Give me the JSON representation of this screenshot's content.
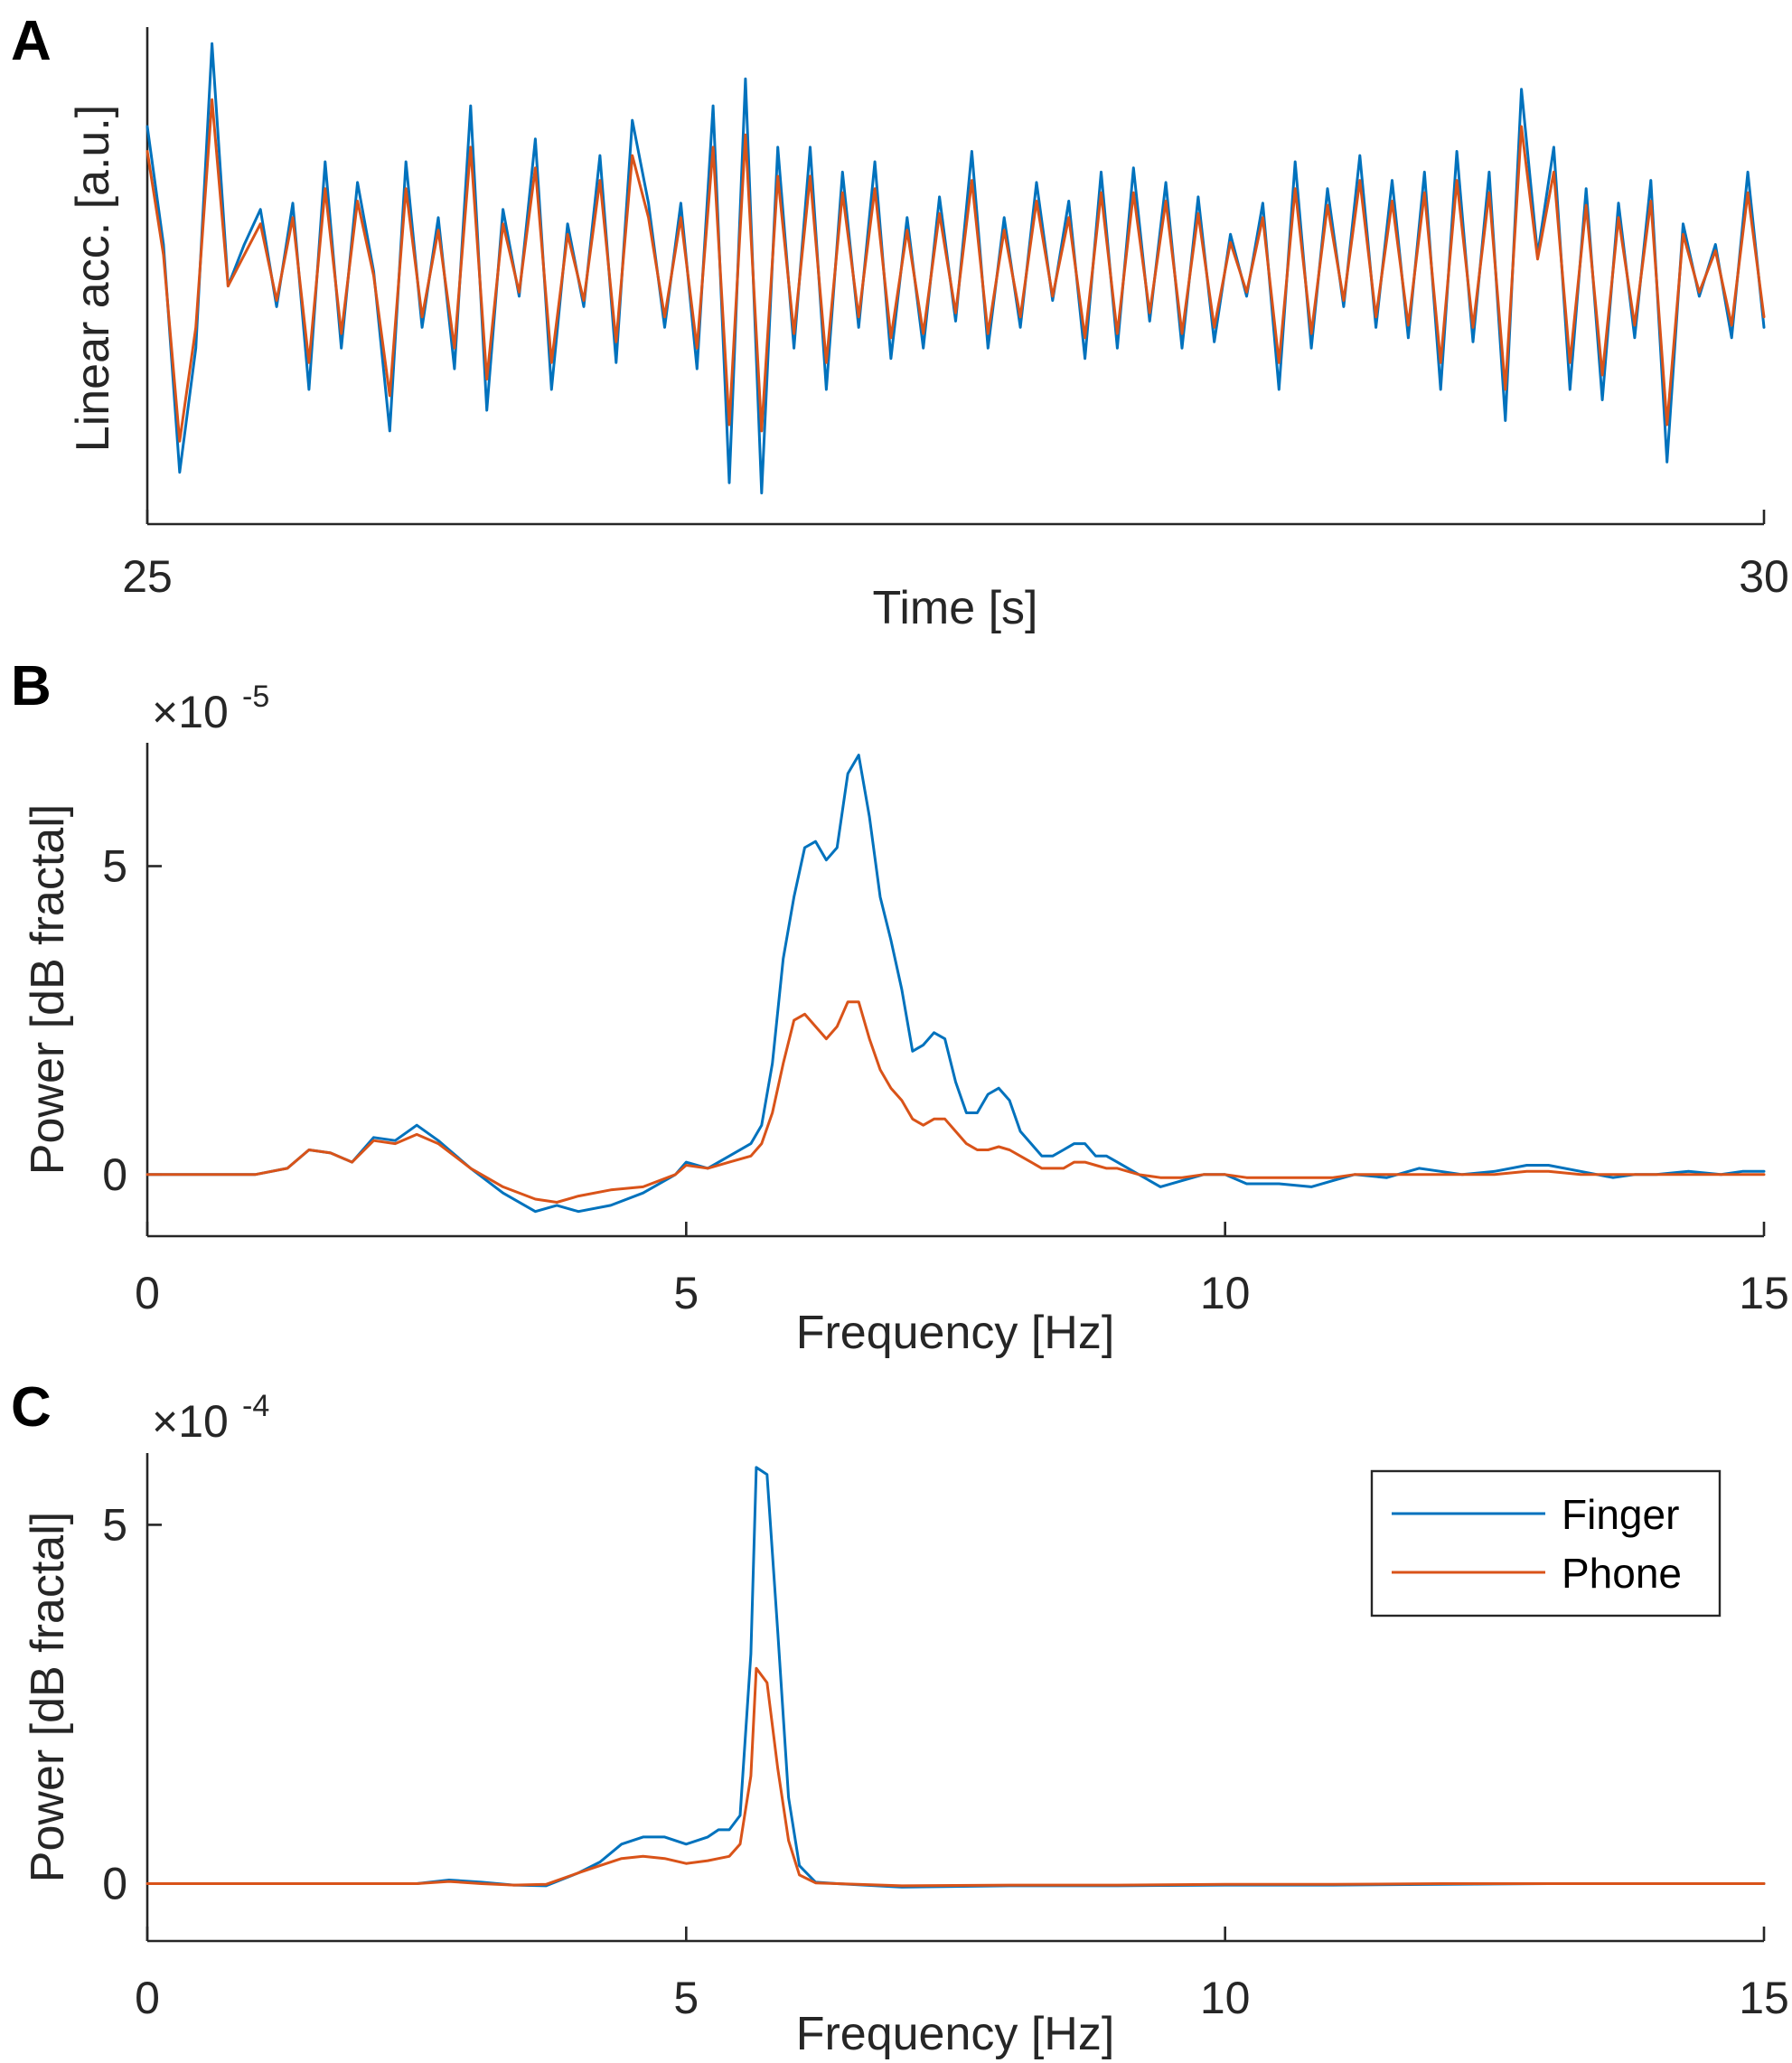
{
  "chart_data": [
    {
      "panel": "A",
      "type": "line",
      "xlabel": "Time [s]",
      "ylabel": "Linear acc. [a.u.]",
      "xlim": [
        25,
        30
      ],
      "ylim": [
        -1.2,
        1.2
      ],
      "xticks": [
        25,
        30
      ],
      "yticks": [],
      "series": [
        {
          "name": "Finger",
          "color": "#0072BD",
          "x": [
            25.0,
            25.05,
            25.1,
            25.15,
            25.2,
            25.25,
            25.3,
            25.35,
            25.4,
            25.45,
            25.5,
            25.55,
            25.6,
            25.65,
            25.7,
            25.75,
            25.8,
            25.85,
            25.9,
            25.95,
            26.0,
            26.05,
            26.1,
            26.15,
            26.2,
            26.25,
            26.3,
            26.35,
            26.4,
            26.45,
            26.5,
            26.55,
            26.6,
            26.65,
            26.7,
            26.75,
            26.8,
            26.85,
            26.9,
            26.95,
            27.0,
            27.05,
            27.1,
            27.15,
            27.2,
            27.25,
            27.3,
            27.35,
            27.4,
            27.45,
            27.5,
            27.55,
            27.6,
            27.65,
            27.7,
            27.75,
            27.8,
            27.85,
            27.9,
            27.95,
            28.0,
            28.05,
            28.1,
            28.15,
            28.2,
            28.25,
            28.3,
            28.35,
            28.4,
            28.45,
            28.5,
            28.55,
            28.6,
            28.65,
            28.7,
            28.75,
            28.8,
            28.85,
            28.9,
            28.95,
            29.0,
            29.05,
            29.1,
            29.15,
            29.2,
            29.25,
            29.3,
            29.35,
            29.4,
            29.45,
            29.5,
            29.55,
            29.6,
            29.65,
            29.7,
            29.75,
            29.8,
            29.85,
            29.9,
            29.95,
            30.0
          ],
          "y": [
            0.72,
            0.15,
            -0.95,
            -0.35,
            1.12,
            -0.05,
            0.15,
            0.32,
            -0.15,
            0.35,
            -0.55,
            0.55,
            -0.35,
            0.45,
            0.02,
            -0.75,
            0.55,
            -0.25,
            0.28,
            -0.45,
            0.82,
            -0.65,
            0.32,
            -0.1,
            0.66,
            -0.55,
            0.25,
            -0.15,
            0.58,
            -0.42,
            0.75,
            0.35,
            -0.25,
            0.35,
            -0.45,
            0.82,
            -1.0,
            0.95,
            -1.05,
            0.62,
            -0.35,
            0.62,
            -0.55,
            0.5,
            -0.25,
            0.55,
            -0.4,
            0.28,
            -0.35,
            0.38,
            -0.22,
            0.6,
            -0.35,
            0.28,
            -0.25,
            0.45,
            -0.12,
            0.36,
            -0.4,
            0.5,
            -0.35,
            0.52,
            -0.22,
            0.45,
            -0.35,
            0.38,
            -0.32,
            0.2,
            -0.1,
            0.35,
            -0.55,
            0.55,
            -0.35,
            0.42,
            -0.15,
            0.58,
            -0.25,
            0.46,
            -0.3,
            0.5,
            -0.55,
            0.6,
            -0.32,
            0.5,
            -0.7,
            0.9,
            0.1,
            0.62,
            -0.55,
            0.42,
            -0.6,
            0.35,
            -0.3,
            0.46,
            -0.9,
            0.25,
            -0.1,
            0.15,
            -0.3,
            0.5,
            -0.25
          ]
        },
        {
          "name": "Phone",
          "color": "#D95319",
          "x": [
            25.0,
            25.05,
            25.1,
            25.15,
            25.2,
            25.25,
            25.3,
            25.35,
            25.4,
            25.45,
            25.5,
            25.55,
            25.6,
            25.65,
            25.7,
            25.75,
            25.8,
            25.85,
            25.9,
            25.95,
            26.0,
            26.05,
            26.1,
            26.15,
            26.2,
            26.25,
            26.3,
            26.35,
            26.4,
            26.45,
            26.5,
            26.55,
            26.6,
            26.65,
            26.7,
            26.75,
            26.8,
            26.85,
            26.9,
            26.95,
            27.0,
            27.05,
            27.1,
            27.15,
            27.2,
            27.25,
            27.3,
            27.35,
            27.4,
            27.45,
            27.5,
            27.55,
            27.6,
            27.65,
            27.7,
            27.75,
            27.8,
            27.85,
            27.9,
            27.95,
            28.0,
            28.05,
            28.1,
            28.15,
            28.2,
            28.25,
            28.3,
            28.35,
            28.4,
            28.45,
            28.5,
            28.55,
            28.6,
            28.65,
            28.7,
            28.75,
            28.8,
            28.85,
            28.9,
            28.95,
            29.0,
            29.05,
            29.1,
            29.15,
            29.2,
            29.25,
            29.3,
            29.35,
            29.4,
            29.45,
            29.5,
            29.55,
            29.6,
            29.65,
            29.7,
            29.75,
            29.8,
            29.85,
            29.9,
            29.95,
            30.0
          ],
          "y": [
            0.6,
            0.1,
            -0.8,
            -0.25,
            0.85,
            -0.05,
            0.1,
            0.25,
            -0.12,
            0.28,
            -0.42,
            0.42,
            -0.28,
            0.36,
            0.0,
            -0.58,
            0.42,
            -0.2,
            0.22,
            -0.35,
            0.62,
            -0.5,
            0.25,
            -0.08,
            0.52,
            -0.42,
            0.2,
            -0.12,
            0.46,
            -0.32,
            0.58,
            0.28,
            -0.2,
            0.28,
            -0.35,
            0.62,
            -0.72,
            0.68,
            -0.75,
            0.48,
            -0.28,
            0.48,
            -0.42,
            0.4,
            -0.2,
            0.42,
            -0.3,
            0.22,
            -0.28,
            0.3,
            -0.18,
            0.46,
            -0.28,
            0.22,
            -0.2,
            0.36,
            -0.1,
            0.28,
            -0.3,
            0.4,
            -0.28,
            0.4,
            -0.18,
            0.36,
            -0.28,
            0.3,
            -0.25,
            0.16,
            -0.08,
            0.28,
            -0.42,
            0.42,
            -0.28,
            0.34,
            -0.12,
            0.46,
            -0.2,
            0.36,
            -0.24,
            0.4,
            -0.42,
            0.46,
            -0.25,
            0.4,
            -0.55,
            0.72,
            0.08,
            0.5,
            -0.42,
            0.34,
            -0.48,
            0.28,
            -0.24,
            0.36,
            -0.72,
            0.2,
            -0.08,
            0.12,
            -0.24,
            0.4,
            -0.2
          ]
        }
      ]
    },
    {
      "panel": "B",
      "type": "line",
      "xlabel": "Frequency [Hz]",
      "ylabel": "Power [dB fractal]",
      "xlim": [
        0,
        15
      ],
      "ylim": [
        -1.0,
        7.0
      ],
      "xticks": [
        0,
        5,
        10,
        15
      ],
      "yticks": [
        0,
        5
      ],
      "exponent": "-5",
      "series": [
        {
          "name": "Finger",
          "color": "#0072BD",
          "x": [
            0,
            0.5,
            1.0,
            1.3,
            1.5,
            1.7,
            1.9,
            2.1,
            2.3,
            2.5,
            2.7,
            3.0,
            3.3,
            3.6,
            3.8,
            4.0,
            4.3,
            4.6,
            4.9,
            5.0,
            5.2,
            5.4,
            5.6,
            5.7,
            5.8,
            5.9,
            6.0,
            6.1,
            6.2,
            6.3,
            6.4,
            6.5,
            6.6,
            6.7,
            6.8,
            6.9,
            7.0,
            7.1,
            7.2,
            7.3,
            7.4,
            7.5,
            7.6,
            7.7,
            7.8,
            7.9,
            8.0,
            8.1,
            8.2,
            8.3,
            8.4,
            8.5,
            8.6,
            8.7,
            8.8,
            8.9,
            9.0,
            9.2,
            9.4,
            9.6,
            9.8,
            10.0,
            10.2,
            10.5,
            10.8,
            11.0,
            11.2,
            11.5,
            11.8,
            12.0,
            12.2,
            12.5,
            12.8,
            13.0,
            13.3,
            13.6,
            13.8,
            14.0,
            14.3,
            14.6,
            14.8,
            15.0
          ],
          "y": [
            0,
            0,
            0,
            0.1,
            0.4,
            0.35,
            0.2,
            0.6,
            0.55,
            0.8,
            0.55,
            0.1,
            -0.3,
            -0.6,
            -0.5,
            -0.6,
            -0.5,
            -0.3,
            0.0,
            0.2,
            0.1,
            0.3,
            0.5,
            0.8,
            1.8,
            3.5,
            4.5,
            5.3,
            5.4,
            5.1,
            5.3,
            6.5,
            6.8,
            5.8,
            4.5,
            3.8,
            3.0,
            2.0,
            2.1,
            2.3,
            2.2,
            1.5,
            1.0,
            1.0,
            1.3,
            1.4,
            1.2,
            0.7,
            0.5,
            0.3,
            0.3,
            0.4,
            0.5,
            0.5,
            0.3,
            0.3,
            0.2,
            0.0,
            -0.2,
            -0.1,
            0.0,
            0.0,
            -0.15,
            -0.15,
            -0.2,
            -0.1,
            0.0,
            -0.05,
            0.1,
            0.05,
            0.0,
            0.05,
            0.15,
            0.15,
            0.05,
            -0.05,
            0.0,
            0.0,
            0.05,
            0.0,
            0.05,
            0.05
          ]
        },
        {
          "name": "Phone",
          "color": "#D95319",
          "x": [
            0,
            0.5,
            1.0,
            1.3,
            1.5,
            1.7,
            1.9,
            2.1,
            2.3,
            2.5,
            2.7,
            3.0,
            3.3,
            3.6,
            3.8,
            4.0,
            4.3,
            4.6,
            4.9,
            5.0,
            5.2,
            5.4,
            5.6,
            5.7,
            5.8,
            5.9,
            6.0,
            6.1,
            6.2,
            6.3,
            6.4,
            6.5,
            6.6,
            6.7,
            6.8,
            6.9,
            7.0,
            7.1,
            7.2,
            7.3,
            7.4,
            7.5,
            7.6,
            7.7,
            7.8,
            7.9,
            8.0,
            8.1,
            8.2,
            8.3,
            8.4,
            8.5,
            8.6,
            8.7,
            8.8,
            8.9,
            9.0,
            9.2,
            9.4,
            9.6,
            9.8,
            10.0,
            10.2,
            10.5,
            10.8,
            11.0,
            11.2,
            11.5,
            11.8,
            12.0,
            12.2,
            12.5,
            12.8,
            13.0,
            13.3,
            13.6,
            13.8,
            14.0,
            14.3,
            14.6,
            14.8,
            15.0
          ],
          "y": [
            0,
            0,
            0,
            0.1,
            0.4,
            0.35,
            0.2,
            0.55,
            0.5,
            0.65,
            0.5,
            0.1,
            -0.2,
            -0.4,
            -0.45,
            -0.35,
            -0.25,
            -0.2,
            0.0,
            0.15,
            0.1,
            0.2,
            0.3,
            0.5,
            1.0,
            1.8,
            2.5,
            2.6,
            2.4,
            2.2,
            2.4,
            2.8,
            2.8,
            2.2,
            1.7,
            1.4,
            1.2,
            0.9,
            0.8,
            0.9,
            0.9,
            0.7,
            0.5,
            0.4,
            0.4,
            0.45,
            0.4,
            0.3,
            0.2,
            0.1,
            0.1,
            0.1,
            0.2,
            0.2,
            0.15,
            0.1,
            0.1,
            0.0,
            -0.05,
            -0.05,
            0.0,
            0.0,
            -0.05,
            -0.05,
            -0.05,
            -0.05,
            0.0,
            0.0,
            0.0,
            0.0,
            0.0,
            0.0,
            0.05,
            0.05,
            0.0,
            0.0,
            0.0,
            0.0,
            0.0,
            0.0,
            0.0,
            0.0
          ]
        }
      ]
    },
    {
      "panel": "C",
      "type": "line",
      "xlabel": "Frequency [Hz]",
      "ylabel": "Power [dB fractal]",
      "xlim": [
        0,
        15
      ],
      "ylim": [
        -0.8,
        6.0
      ],
      "xticks": [
        0,
        5,
        10,
        15
      ],
      "yticks": [
        0,
        5
      ],
      "exponent": "-4",
      "legend": {
        "entries": [
          "Finger",
          "Phone"
        ],
        "location": "top-right"
      },
      "series": [
        {
          "name": "Finger",
          "color": "#0072BD",
          "x": [
            0,
            1,
            2,
            2.5,
            2.8,
            3.1,
            3.4,
            3.7,
            4.0,
            4.2,
            4.4,
            4.6,
            4.8,
            5.0,
            5.2,
            5.3,
            5.4,
            5.5,
            5.6,
            5.65,
            5.75,
            5.85,
            5.95,
            6.05,
            6.2,
            6.4,
            7.0,
            8.0,
            9.0,
            10.0,
            11.0,
            12.0,
            13.0,
            14.0,
            15.0
          ],
          "y": [
            0,
            0,
            0,
            0.0,
            0.05,
            0.02,
            -0.02,
            -0.03,
            0.15,
            0.3,
            0.55,
            0.65,
            0.65,
            0.55,
            0.65,
            0.75,
            0.75,
            0.95,
            3.2,
            5.8,
            5.7,
            3.5,
            1.2,
            0.25,
            0.02,
            0.0,
            -0.05,
            -0.03,
            -0.03,
            -0.02,
            -0.02,
            -0.01,
            0.0,
            0.0,
            0.0
          ]
        },
        {
          "name": "Phone",
          "color": "#D95319",
          "x": [
            0,
            1,
            2,
            2.5,
            2.8,
            3.1,
            3.4,
            3.7,
            4.0,
            4.2,
            4.4,
            4.6,
            4.8,
            5.0,
            5.2,
            5.3,
            5.4,
            5.5,
            5.6,
            5.65,
            5.75,
            5.85,
            5.95,
            6.05,
            6.2,
            6.4,
            7.0,
            8.0,
            9.0,
            10.0,
            11.0,
            12.0,
            13.0,
            14.0,
            15.0
          ],
          "y": [
            0,
            0,
            0,
            0.0,
            0.03,
            0.0,
            -0.02,
            -0.01,
            0.15,
            0.25,
            0.35,
            0.38,
            0.35,
            0.28,
            0.32,
            0.35,
            0.38,
            0.55,
            1.5,
            3.0,
            2.8,
            1.6,
            0.6,
            0.12,
            0.01,
            0.0,
            -0.03,
            -0.02,
            -0.02,
            -0.01,
            -0.01,
            0.0,
            0.0,
            0.0,
            0.0
          ]
        }
      ]
    }
  ]
}
